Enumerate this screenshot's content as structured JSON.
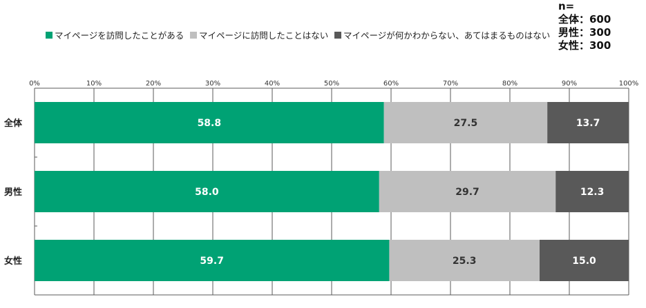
{
  "sample_size": {
    "header": "n=",
    "lines": [
      "全体：600",
      "男性：300",
      "女性：300"
    ]
  },
  "chart_data": {
    "type": "bar",
    "orientation": "horizontal",
    "stacked": "100%",
    "categories": [
      "全体",
      "男性",
      "女性"
    ],
    "series": [
      {
        "name": "マイページを訪問したことがある",
        "values": [
          58.8,
          58.0,
          59.7
        ],
        "color": "#00a274",
        "label_color": "#ffffff"
      },
      {
        "name": "マイページに訪問したことはない",
        "values": [
          27.5,
          29.7,
          25.3
        ],
        "color": "#bfbfbf",
        "label_color": "#333333"
      },
      {
        "name": "マイページが何かわからない、あてはまるものはない",
        "values": [
          13.7,
          12.3,
          15.0
        ],
        "color": "#595959",
        "label_color": "#ffffff"
      }
    ],
    "xlim": [
      0,
      100
    ],
    "xticks": [
      "0%",
      "10%",
      "20%",
      "30%",
      "40%",
      "50%",
      "60%",
      "70%",
      "80%",
      "90%",
      "100%"
    ],
    "grid": true,
    "legend_position": "top"
  }
}
